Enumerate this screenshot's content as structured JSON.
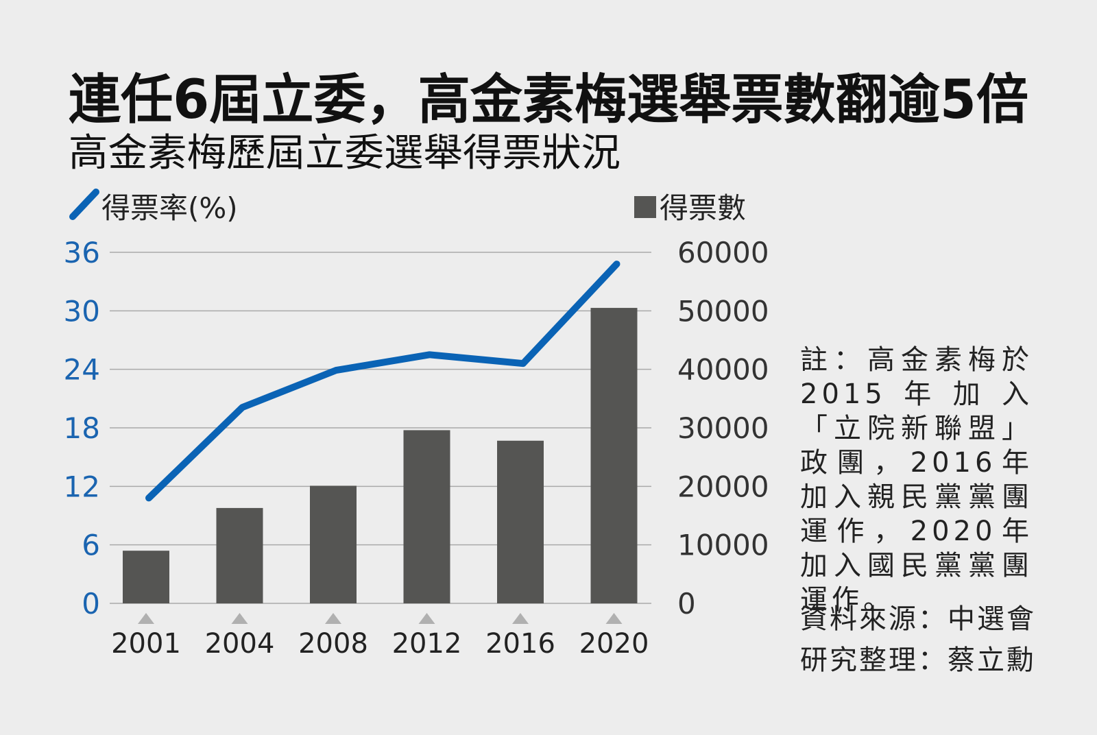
{
  "chart_data": {
    "type": "bar",
    "title": "連任6屆立委，高金素梅選舉票數翻逾5倍",
    "subtitle": "高金素梅歷屆立委選舉得票狀況",
    "categories": [
      "2001",
      "2004",
      "2008",
      "2012",
      "2016",
      "2020"
    ],
    "series": [
      {
        "name": "得票數",
        "type": "bar",
        "axis": "right",
        "color": "#555553",
        "values": [
          9000,
          16300,
          20100,
          29600,
          27800,
          50500
        ]
      },
      {
        "name": "得票率(%)",
        "type": "line",
        "axis": "left",
        "color": "#0a63b5",
        "values": [
          10.8,
          20.1,
          23.9,
          25.5,
          24.6,
          34.8
        ]
      }
    ],
    "y_left": {
      "ticks": [
        "0",
        "6",
        "12",
        "18",
        "24",
        "30",
        "36"
      ],
      "min": 0,
      "max": 36,
      "color": "#1a64b0"
    },
    "y_right": {
      "ticks": [
        "0",
        "10000",
        "20000",
        "30000",
        "40000",
        "50000",
        "60000"
      ],
      "min": 0,
      "max": 60000,
      "color": "#333333"
    },
    "legend": {
      "line_label": "得票率(%)",
      "bar_label": "得票數",
      "placement": "top"
    },
    "grid": true
  },
  "note": "註：高金素梅於2015年加入「立院新聯盟」政團，2016年加入親民黨黨團運作，2020年加入國民黨黨團運作。",
  "source": "資料來源：中選會",
  "compiled_by": "研究整理：蔡立勳"
}
